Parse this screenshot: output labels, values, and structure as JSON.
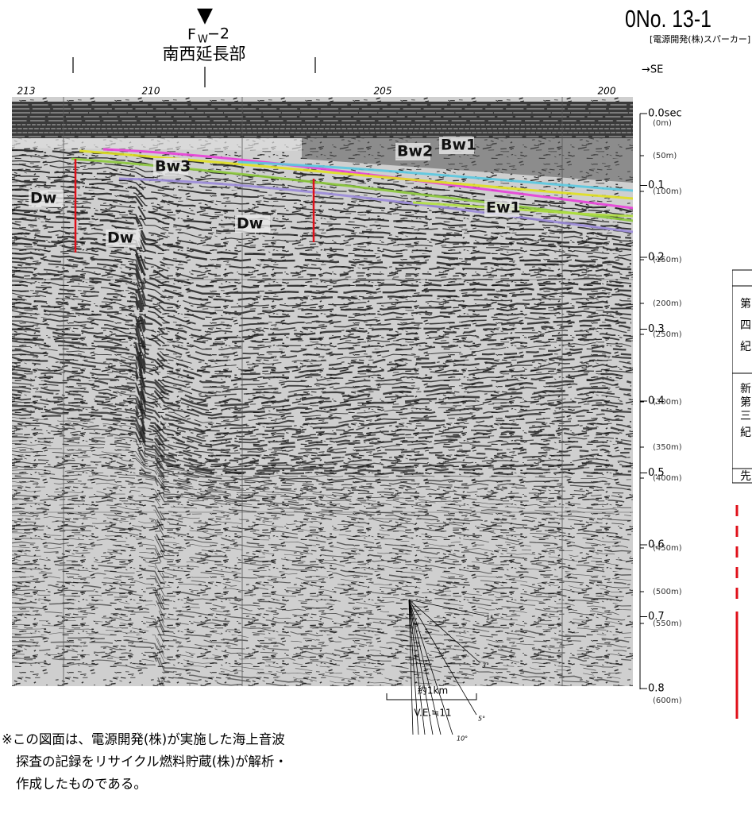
{
  "header": {
    "sheet_no": "0No. 13-1",
    "source": "[電源開発(株)スパーカー]",
    "fault_marker": "▼",
    "fault_name": "F",
    "fault_sub": "W",
    "fault_suffix": "−2",
    "section": "南西延長部",
    "direction": "→SE"
  },
  "section": {
    "shot_points": [
      "213",
      "210",
      "205",
      "200"
    ],
    "time_ticks": [
      "0.0sec",
      "0.1",
      "0.2",
      "0.3",
      "0.4",
      "0.5",
      "0.6",
      "0.7",
      "0.8"
    ],
    "depth_ticks": [
      "(0m)",
      "(50m)",
      "(100m)",
      "(150m)",
      "(200m)",
      "(250m)",
      "(300m)",
      "(350m)",
      "(400m)",
      "(450m)",
      "(500m)",
      "(550m)",
      "(600m)"
    ],
    "horizons": [
      "Bw3",
      "Dw",
      "Dw",
      "Dw",
      "Bw2",
      "Bw1",
      "Ew1"
    ]
  },
  "scale": {
    "distance": "約1km",
    "vertical_exaggeration": "V.E.≒11",
    "angles": [
      "1°",
      "3°",
      "5°",
      "10°"
    ]
  },
  "note": [
    "※この図面は、電源開発(株)が実施した海上音波",
    "探査の記録をリサイクル燃料貯蔵(株)が解析・",
    "作成したものである。"
  ],
  "legend_table": {
    "cells": [
      "第",
      "四",
      "紀",
      "新",
      "第",
      "三",
      "紀",
      "先"
    ]
  }
}
